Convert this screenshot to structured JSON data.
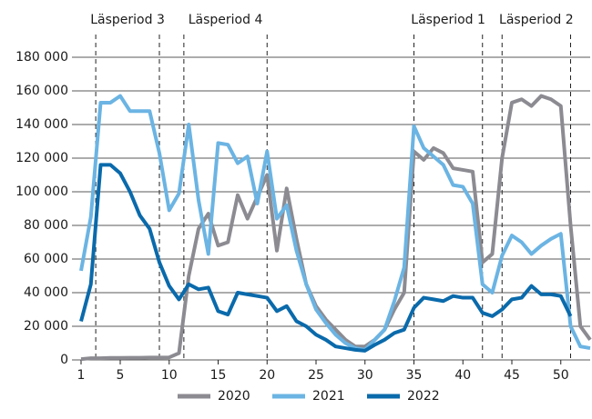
{
  "chart_data": {
    "type": "line",
    "x": [
      1,
      2,
      3,
      4,
      5,
      6,
      7,
      8,
      9,
      10,
      11,
      12,
      13,
      14,
      15,
      16,
      17,
      18,
      19,
      20,
      21,
      22,
      23,
      24,
      25,
      26,
      27,
      28,
      29,
      30,
      31,
      32,
      33,
      34,
      35,
      36,
      37,
      38,
      39,
      40,
      41,
      42,
      43,
      44,
      45,
      46,
      47,
      48,
      49,
      50,
      51,
      52,
      53
    ],
    "series": [
      {
        "name": "2020",
        "color": "#8c8b92",
        "values": [
          500,
          1000,
          1000,
          1200,
          1200,
          1300,
          1300,
          1400,
          1400,
          1500,
          4000,
          50000,
          78000,
          87000,
          68000,
          70000,
          98000,
          84000,
          97000,
          110000,
          65000,
          102000,
          72000,
          45000,
          32000,
          24000,
          18000,
          12000,
          8000,
          8000,
          12000,
          18000,
          30000,
          40000,
          124000,
          119000,
          126000,
          123000,
          114000,
          113000,
          112000,
          58000,
          63000,
          120000,
          153000,
          155000,
          151000,
          157000,
          155000,
          151000,
          80000,
          20000,
          12000
        ]
      },
      {
        "name": "2021",
        "color": "#6bb4e3",
        "values": [
          53000,
          85000,
          153000,
          153000,
          157000,
          148000,
          148000,
          148000,
          123000,
          89000,
          99000,
          140000,
          95000,
          63000,
          129000,
          128000,
          117000,
          121000,
          93000,
          124000,
          84000,
          92000,
          65000,
          45000,
          30000,
          22000,
          15000,
          10000,
          7000,
          6000,
          12000,
          18000,
          35000,
          55000,
          139000,
          126000,
          121000,
          116000,
          104000,
          103000,
          93000,
          45000,
          40000,
          62000,
          74000,
          70000,
          63000,
          68000,
          72000,
          75000,
          20000,
          8000,
          7000
        ]
      },
      {
        "name": "2022",
        "color": "#0a6aab",
        "values": [
          23000,
          45000,
          116000,
          116000,
          111000,
          100000,
          86000,
          78000,
          58000,
          44000,
          36000,
          45000,
          42000,
          43000,
          29000,
          27000,
          40000,
          39000,
          38000,
          37000,
          29000,
          32000,
          23000,
          20000,
          15000,
          12000,
          8000,
          7000,
          6000,
          5500,
          9000,
          12000,
          16000,
          18000,
          31000,
          37000,
          36000,
          35000,
          38000,
          37000,
          37000,
          28000,
          26000,
          30000,
          36000,
          37000,
          44000,
          39000,
          39000,
          38000,
          26000,
          null,
          null
        ]
      }
    ],
    "xlim": [
      1,
      53
    ],
    "xticks": [
      1,
      5,
      10,
      15,
      20,
      25,
      30,
      35,
      40,
      45,
      50
    ],
    "ylim": [
      0,
      180000
    ],
    "yticks": [
      0,
      {
        "value": 20000,
        "label": "20 000"
      },
      {
        "value": 40000,
        "label": "40 000"
      },
      {
        "value": 60000,
        "label": "60 000"
      },
      {
        "value": 80000,
        "label": "80 000"
      },
      {
        "value": 100000,
        "label": "100 000"
      },
      {
        "value": 120000,
        "label": "120 000"
      },
      {
        "value": 140000,
        "label": "140 000"
      },
      {
        "value": 160000,
        "label": "160 000"
      },
      {
        "value": 180000,
        "label": "180 000"
      }
    ],
    "grid": true,
    "legend": "bottom",
    "periods": [
      {
        "label": "Läsperiod 3",
        "start": 2.5,
        "end": 9
      },
      {
        "label": "Läsperiod 4",
        "start": 11.5,
        "end": 20
      },
      {
        "label": "Läsperiod 1",
        "start": 35,
        "end": 42
      },
      {
        "label": "Läsperiod 2",
        "start": 44,
        "end": 51
      }
    ]
  }
}
